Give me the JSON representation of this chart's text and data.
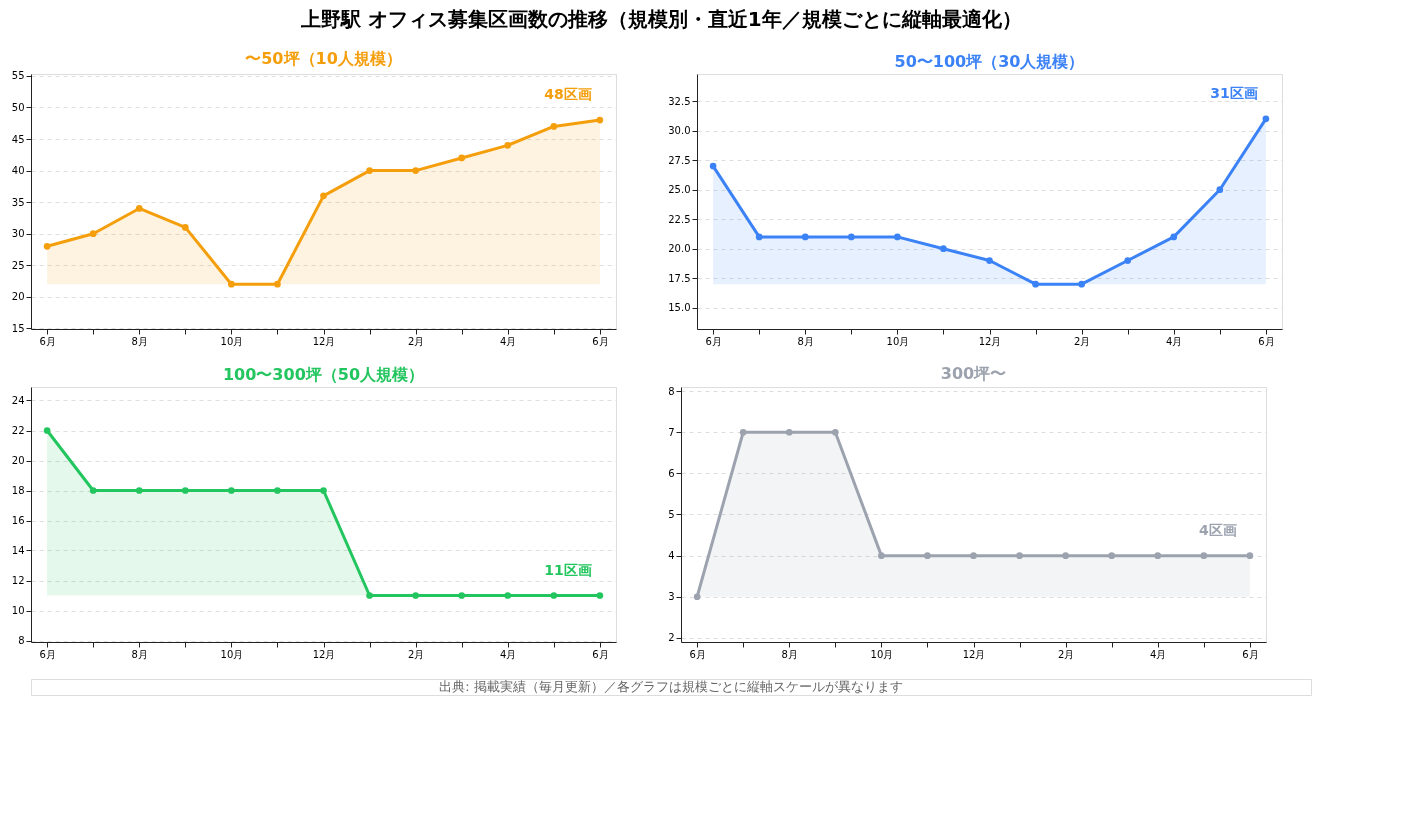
{
  "chart_data": [
    {
      "type": "area",
      "title": "〜50坪（10人規模）",
      "categories": [
        "6月",
        null,
        "8月",
        null,
        "10月",
        null,
        "12月",
        null,
        "2月",
        null,
        "4月",
        null,
        "6月"
      ],
      "series": [
        {
          "color": "#f59e0b",
          "values": [
            28,
            30,
            34,
            31,
            22,
            22,
            36,
            40,
            40,
            42,
            44,
            47,
            48
          ],
          "value_labels": [
            null,
            null,
            null,
            null,
            null,
            null,
            null,
            null,
            null,
            null,
            null,
            null,
            "48区画"
          ]
        }
      ],
      "ylim": [
        14.9,
        55.3
      ],
      "yticks": [
        15,
        20,
        25,
        30,
        35,
        40,
        45,
        50,
        55
      ],
      "grid": "y",
      "marker": "circle",
      "line_style": "solid",
      "annotations": [
        "上野駅 オフィス募集区画数の推移（規模別・直近1年／規模ごとに縦軸最適化）",
        "出典: 掲載実績（毎月更新）／各グラフは規模ごとに縦軸スケールが異なります"
      ]
    },
    {
      "type": "area",
      "title": "50〜100坪（30人規模）",
      "categories": [
        "6月",
        null,
        "8月",
        null,
        "10月",
        null,
        "12月",
        null,
        "2月",
        null,
        "4月",
        null,
        "6月"
      ],
      "series": [
        {
          "color": "#3b82f6",
          "values": [
            27,
            21,
            21,
            21,
            21,
            20,
            19,
            17,
            17,
            19,
            21,
            25,
            31
          ],
          "value_labels": [
            null,
            null,
            null,
            null,
            null,
            null,
            null,
            null,
            null,
            null,
            null,
            null,
            "31区画"
          ]
        }
      ],
      "ylim": [
        13.2,
        34.8
      ],
      "yticks": [
        {
          "value": 15,
          "label": "15.0"
        },
        17.5,
        {
          "value": 20,
          "label": "20.0"
        },
        22.5,
        {
          "value": 25,
          "label": "25.0"
        },
        27.5,
        {
          "value": 30,
          "label": "30.0"
        },
        32.5
      ],
      "grid": "y",
      "marker": "circle",
      "line_style": "solid"
    },
    {
      "type": "area",
      "title": "100〜300坪（50人規模）",
      "categories": [
        "6月",
        null,
        "8月",
        null,
        "10月",
        null,
        "12月",
        null,
        "2月",
        null,
        "4月",
        null,
        "6月"
      ],
      "series": [
        {
          "color": "#22c55e",
          "values": [
            22,
            18,
            18,
            18,
            18,
            18,
            18,
            11,
            11,
            11,
            11,
            11,
            11
          ],
          "value_labels": [
            null,
            null,
            null,
            null,
            null,
            null,
            null,
            null,
            null,
            null,
            null,
            null,
            "11区画"
          ]
        }
      ],
      "ylim": [
        7.9,
        24.9
      ],
      "yticks": [
        8,
        10,
        12,
        14,
        16,
        18,
        20,
        22,
        24
      ],
      "grid": "y",
      "marker": "circle",
      "line_style": "solid"
    },
    {
      "type": "area",
      "title": "300坪〜",
      "categories": [
        "6月",
        null,
        "8月",
        null,
        "10月",
        null,
        "12月",
        null,
        "2月",
        null,
        "4月",
        null,
        "6月"
      ],
      "series": [
        {
          "color": "#9ca3af",
          "values": [
            3,
            7,
            7,
            7,
            4,
            4,
            4,
            4,
            4,
            4,
            4,
            4,
            4
          ],
          "value_labels": [
            null,
            null,
            null,
            null,
            null,
            null,
            null,
            null,
            null,
            null,
            null,
            null,
            "4区画"
          ]
        }
      ],
      "ylim": [
        1.9,
        8.1
      ],
      "yticks": [
        2,
        3,
        4,
        5,
        6,
        7,
        8
      ],
      "grid": "y",
      "marker": "circle",
      "line_style": "solid"
    }
  ]
}
